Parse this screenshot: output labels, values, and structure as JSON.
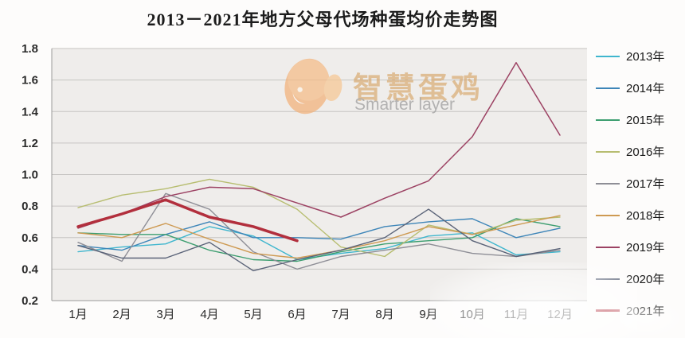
{
  "title": "2013－2021年地方父母代场种蛋均价走势图",
  "watermark": {
    "cn": "智慧蛋鸡",
    "en": "Smarter layer",
    "logo": "egg-chick-icon",
    "logo_color": "#f0ae6b"
  },
  "chart_data": {
    "type": "line",
    "title": "2013－2021年地方父母代场种蛋均价走势图",
    "xlabel": "",
    "ylabel": "",
    "categories": [
      "1月",
      "2月",
      "3月",
      "4月",
      "5月",
      "6月",
      "7月",
      "8月",
      "9月",
      "10月",
      "11月",
      "12月"
    ],
    "y_ticks": [
      0.2,
      0.4,
      0.6,
      0.8,
      1.0,
      1.2,
      1.4,
      1.6,
      1.8
    ],
    "ylim": [
      0.2,
      1.8
    ],
    "grid": true,
    "legend_position": "right",
    "plot_bg": "#efedeb",
    "grid_color": "#c6c4c2",
    "axis_color": "#9a9a9a",
    "tick_label_color": "#2b2b2b",
    "highlight_series": "2021年",
    "series": [
      {
        "name": "2013年",
        "color": "#3fb6ce",
        "width": 1.4,
        "values": [
          0.51,
          0.54,
          0.56,
          0.67,
          0.61,
          0.46,
          0.5,
          0.53,
          0.61,
          0.63,
          0.49,
          0.51
        ]
      },
      {
        "name": "2014年",
        "color": "#3d85b8",
        "width": 1.4,
        "values": [
          0.55,
          0.52,
          0.62,
          0.7,
          0.6,
          0.6,
          0.59,
          0.67,
          0.7,
          0.72,
          0.6,
          0.66
        ]
      },
      {
        "name": "2015年",
        "color": "#3d9e70",
        "width": 1.4,
        "values": [
          0.63,
          0.62,
          0.62,
          0.52,
          0.46,
          0.45,
          0.51,
          0.56,
          0.58,
          0.6,
          0.72,
          0.67
        ]
      },
      {
        "name": "2016年",
        "color": "#b7bd70",
        "width": 1.4,
        "values": [
          0.79,
          0.87,
          0.91,
          0.97,
          0.92,
          0.78,
          0.54,
          0.48,
          0.68,
          0.62,
          0.71,
          0.73
        ]
      },
      {
        "name": "2017年",
        "color": "#8e8e96",
        "width": 1.4,
        "values": [
          0.57,
          0.45,
          0.88,
          0.78,
          0.51,
          0.4,
          0.48,
          0.52,
          0.56,
          0.5,
          0.48,
          0.52
        ]
      },
      {
        "name": "2018年",
        "color": "#ce9a52",
        "width": 1.4,
        "values": [
          0.63,
          0.6,
          0.69,
          0.59,
          0.5,
          0.47,
          0.52,
          0.58,
          0.67,
          0.62,
          0.68,
          0.74
        ]
      },
      {
        "name": "2019年",
        "color": "#9c4263",
        "width": 1.5,
        "values": [
          0.66,
          0.75,
          0.86,
          0.92,
          0.91,
          0.82,
          0.73,
          0.85,
          0.96,
          1.24,
          1.71,
          1.25
        ]
      },
      {
        "name": "2020年",
        "color": "#5a6378",
        "width": 1.4,
        "values": [
          0.55,
          0.47,
          0.47,
          0.57,
          0.39,
          0.46,
          0.52,
          0.6,
          0.78,
          0.58,
          0.48,
          0.53
        ]
      },
      {
        "name": "2021年",
        "color": "#b22f3d",
        "width": 3.5,
        "values": [
          0.67,
          0.75,
          0.84,
          0.73,
          0.67,
          0.58,
          null,
          null,
          null,
          null,
          null,
          null
        ]
      }
    ]
  }
}
